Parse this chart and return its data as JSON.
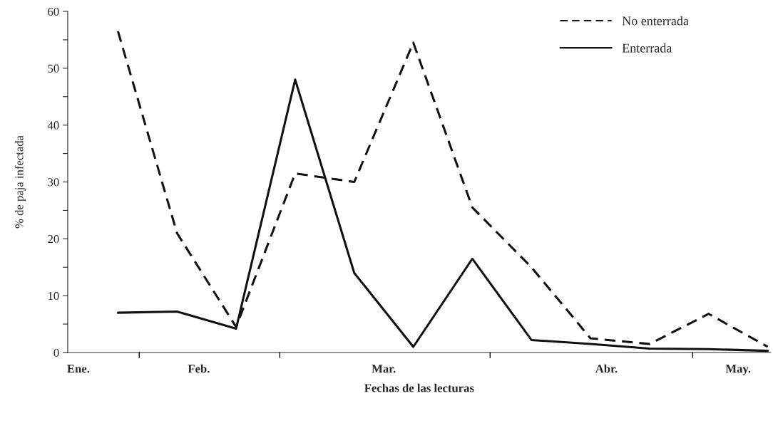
{
  "chart_data": {
    "type": "line",
    "xlabel": "Fechas de las lecturas",
    "ylabel": "% de paja infectada",
    "categories": [
      null,
      null,
      null,
      null,
      null,
      null,
      null,
      null,
      null,
      null,
      null,
      null
    ],
    "annotations": [
      "Ene.",
      "Feb.",
      "Mar.",
      "Abr.",
      "May."
    ],
    "ylim": [
      0,
      60
    ],
    "yticks": [
      0,
      {
        "value": 5,
        "label": null
      },
      10,
      {
        "value": 15,
        "label": null
      },
      20,
      {
        "value": 25,
        "label": null
      },
      30,
      {
        "value": 35,
        "label": null
      },
      40,
      {
        "value": 45,
        "label": null
      },
      50,
      {
        "value": 55,
        "label": null
      },
      60
    ],
    "legend": "top right",
    "marker": "none",
    "series": [
      {
        "name": "No enterrada",
        "color": "#111111",
        "line_style": "dashed",
        "values": [
          56.5,
          21,
          4.5,
          31.5,
          30,
          54.5,
          25.5,
          15,
          2.5,
          1.5,
          6.8,
          1
        ]
      },
      {
        "name": "Enterrada",
        "color": "#111111",
        "line_style": "solid",
        "values": [
          7,
          7.2,
          4.2,
          48,
          14,
          1,
          16.5,
          2.2,
          1.5,
          0.7,
          0.6,
          0.3
        ]
      }
    ]
  }
}
